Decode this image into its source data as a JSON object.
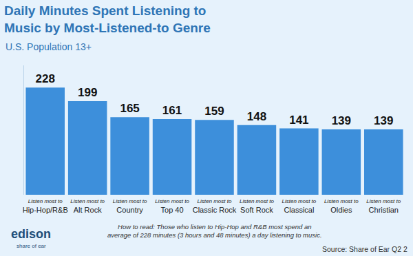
{
  "chart_data": {
    "type": "bar",
    "title": [
      "Daily Minutes Spent Listening to",
      "Music by Most-Listened-to Genre"
    ],
    "subtitle": "U.S. Population 13+",
    "categories": [
      "Hip-Hop/R&B",
      "Alt Rock",
      "Country",
      "Top 40",
      "Classic Rock",
      "Soft Rock",
      "Classical",
      "Oldies",
      "Christian"
    ],
    "values": [
      228,
      199,
      165,
      161,
      159,
      148,
      141,
      139,
      139
    ],
    "color": "#3d8fdb",
    "ylim": [
      0,
      275
    ],
    "yticks": [],
    "grid": false,
    "data_labels": true,
    "tick_labels": "x",
    "bar_label": "Listen most to",
    "note": [
      "How to read: Those who listen to Hip-Hop and R&B most spend an",
      "average of 228 minutes (3 hours and 48 minutes) a day listening to music."
    ],
    "source": "Source: Share of Ear Q2 2",
    "logo": {
      "name": "edison",
      "tagline": "share of ear"
    }
  }
}
